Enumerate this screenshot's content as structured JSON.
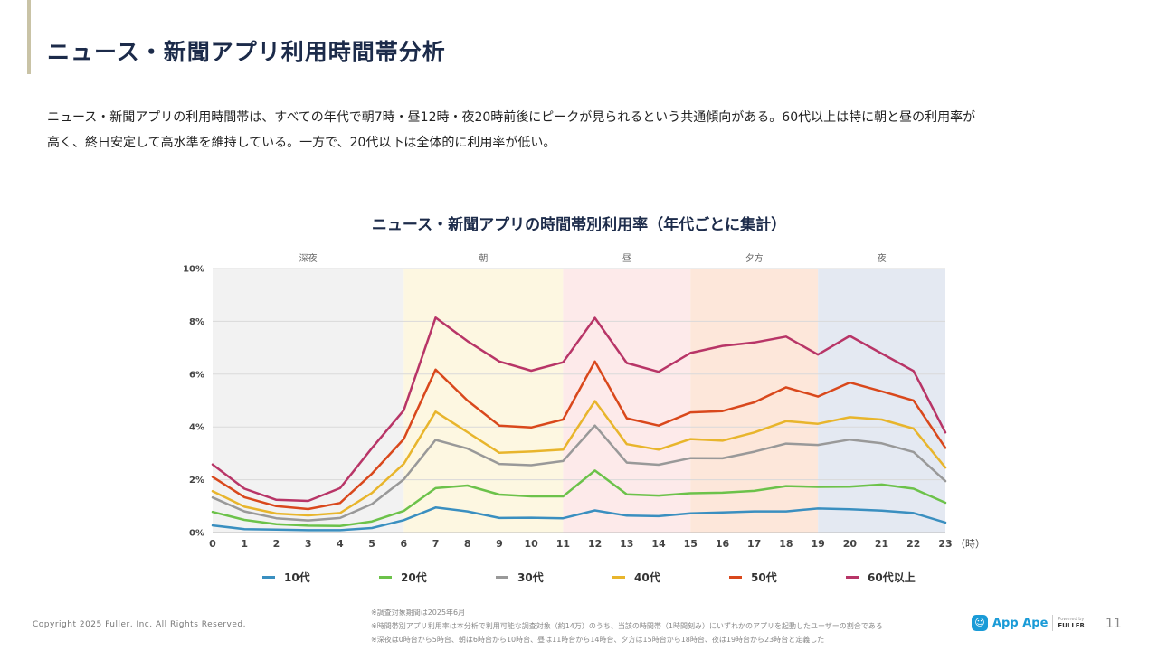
{
  "header": {
    "title": "ニュース・新聞アプリ利用時間帯分析",
    "description_line1": "ニュース・新聞アプリの利用時間帯は、すべての年代で朝7時・昼12時・夜20時前後にピークが見られるという共通傾向がある。60代以上は特に朝と昼の利用率が",
    "description_line2": "高く、終日安定して高水準を維持している。一方で、20代以下は全体的に利用率が低い。"
  },
  "chart_data": {
    "type": "line",
    "title": "ニュース・新聞アプリの時間帯別利用率（年代ごとに集計）",
    "x_unit": "（時）",
    "x": [
      0,
      1,
      2,
      3,
      4,
      5,
      6,
      7,
      8,
      9,
      10,
      11,
      12,
      13,
      14,
      15,
      16,
      17,
      18,
      19,
      20,
      21,
      22,
      23
    ],
    "x_tick_labels": [
      "0",
      "1",
      "2",
      "3",
      "4",
      "5",
      "6",
      "7",
      "8",
      "9",
      "10",
      "11",
      "12",
      "13",
      "14",
      "15",
      "16",
      "17",
      "18",
      "19",
      "20",
      "21",
      "22",
      "23"
    ],
    "ylim": [
      0,
      10
    ],
    "y_ticks": [
      0,
      2,
      4,
      6,
      8,
      10
    ],
    "y_tick_labels": [
      "0%",
      "2%",
      "4%",
      "6%",
      "8%",
      "10%"
    ],
    "grid": true,
    "legend_position": "bottom",
    "bands": [
      {
        "label": "深夜",
        "start": 0,
        "end": 6,
        "color": "#f2f2f2"
      },
      {
        "label": "朝",
        "start": 6,
        "end": 11,
        "color": "#fdf7e1"
      },
      {
        "label": "昼",
        "start": 11,
        "end": 15,
        "color": "#fdeaea"
      },
      {
        "label": "夕方",
        "start": 15,
        "end": 19,
        "color": "#fde7da"
      },
      {
        "label": "夜",
        "start": 19,
        "end": 23,
        "color": "#e4e9f2"
      }
    ],
    "series": [
      {
        "name": "10代",
        "color": "#3a8fc0",
        "values": [
          0.27,
          0.13,
          0.11,
          0.09,
          0.09,
          0.17,
          0.47,
          0.95,
          0.8,
          0.55,
          0.56,
          0.54,
          0.84,
          0.64,
          0.62,
          0.73,
          0.76,
          0.8,
          0.8,
          0.91,
          0.88,
          0.83,
          0.74,
          0.38
        ]
      },
      {
        "name": "20代",
        "color": "#6cc24a",
        "values": [
          0.78,
          0.48,
          0.32,
          0.26,
          0.25,
          0.42,
          0.82,
          1.68,
          1.78,
          1.44,
          1.37,
          1.37,
          2.35,
          1.45,
          1.4,
          1.49,
          1.51,
          1.58,
          1.76,
          1.73,
          1.74,
          1.82,
          1.66,
          1.13
        ]
      },
      {
        "name": "30代",
        "color": "#999999",
        "values": [
          1.33,
          0.8,
          0.54,
          0.46,
          0.55,
          1.08,
          2.01,
          3.51,
          3.18,
          2.6,
          2.55,
          2.71,
          4.05,
          2.65,
          2.57,
          2.82,
          2.81,
          3.06,
          3.37,
          3.32,
          3.52,
          3.38,
          3.05,
          1.95
        ]
      },
      {
        "name": "40代",
        "color": "#e8b52c",
        "values": [
          1.57,
          0.98,
          0.72,
          0.65,
          0.74,
          1.5,
          2.6,
          4.58,
          3.8,
          3.02,
          3.07,
          3.14,
          4.98,
          3.35,
          3.14,
          3.54,
          3.48,
          3.79,
          4.22,
          4.12,
          4.37,
          4.28,
          3.94,
          2.46
        ]
      },
      {
        "name": "50代",
        "color": "#d9481c",
        "values": [
          2.11,
          1.34,
          1.0,
          0.89,
          1.12,
          2.23,
          3.54,
          6.17,
          5.0,
          4.05,
          3.98,
          4.28,
          6.48,
          4.33,
          4.05,
          4.55,
          4.6,
          4.93,
          5.5,
          5.15,
          5.68,
          5.35,
          5.0,
          3.21
        ]
      },
      {
        "name": "60代以上",
        "color": "#b83567",
        "values": [
          2.58,
          1.66,
          1.24,
          1.2,
          1.68,
          3.2,
          4.63,
          8.14,
          7.25,
          6.48,
          6.13,
          6.45,
          8.13,
          6.42,
          6.09,
          6.8,
          7.07,
          7.2,
          7.42,
          6.74,
          7.45,
          6.78,
          6.12,
          3.79
        ]
      }
    ]
  },
  "footer": {
    "copyright": "Copyright 2025 Fuller, Inc. All Rights Reserved.",
    "note1": "※調査対象期間は2025年6月",
    "note2": "※時間帯別アプリ利用率は本分析で利用可能な調査対象（約14万）のうち、当該の時間帯（1時間刻み）にいずれかのアプリを起動したユーザーの割合である",
    "note3": "※深夜は0時台から5時台、朝は6時台から10時台、昼は11時台から14時台、夕方は15時台から18時台、夜は19時台から23時台と定義した",
    "brand_name": "App Ape",
    "brand_powered": "Powered by",
    "brand_fuller": "FULLER",
    "page_number": "11"
  },
  "theme": {
    "accent": "#c9c3a6",
    "title_color": "#1c2b4a",
    "brand_color": "#1a9bd7"
  }
}
